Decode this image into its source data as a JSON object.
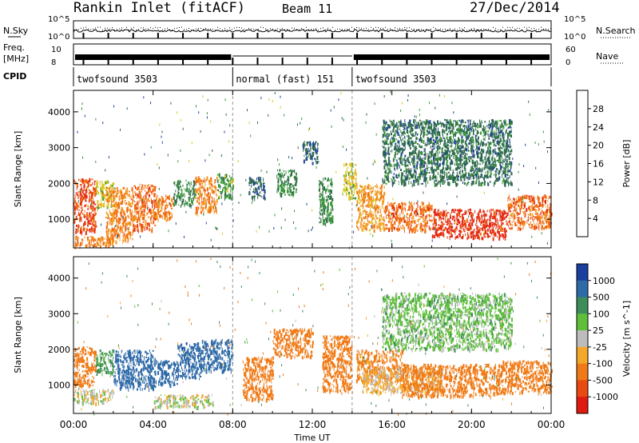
{
  "header": {
    "station": "Rankin Inlet (fitACF)",
    "beam": "Beam 11",
    "date": "27/Dec/2014"
  },
  "top_panels": {
    "nsky_label": "N.Sky",
    "nsky_ticks": [
      "10^5",
      "10^0"
    ],
    "nsearch_label": "N.Search",
    "nsearch_ticks": [
      "10^5",
      "10^0"
    ],
    "freq_label_1": "Freq.",
    "freq_label_2": "[MHz]",
    "freq_ticks": [
      "10",
      "8"
    ],
    "nave_label": "Nave",
    "nave_ticks": [
      "60",
      "0"
    ],
    "cpid_label": "CPID",
    "cpid_segments": [
      {
        "label": "twofsound 3503",
        "start_hour": 0,
        "end_hour": 8
      },
      {
        "label": "normal (fast) 151",
        "start_hour": 8,
        "end_hour": 14
      },
      {
        "label": "twofsound 3503",
        "start_hour": 14,
        "end_hour": 24
      }
    ]
  },
  "x_axis": {
    "label": "Time UT",
    "ticks": [
      "00:00",
      "04:00",
      "08:00",
      "12:00",
      "16:00",
      "20:00",
      "00:00"
    ]
  },
  "y_axis": {
    "label": "Slant Range [km]",
    "ticks": [
      "1000",
      "2000",
      "3000",
      "4000"
    ]
  },
  "power_scale": {
    "label": "Power [dB]",
    "ticks": [
      "4",
      "8",
      "12",
      "16",
      "20",
      "24",
      "28"
    ],
    "colors": [
      "#1f24ff",
      "#22449a",
      "#2f6b4a",
      "#3d9a3a",
      "#d9c81e",
      "#f49a1e",
      "#f06a14",
      "#e32a12"
    ]
  },
  "velocity_scale": {
    "label": "Velocity [m s^-1]",
    "ticks": [
      "1000",
      "500",
      "100",
      "25",
      "-25",
      "-100",
      "-500",
      "-1000"
    ],
    "colors": [
      "#1b3f9e",
      "#2f6aa8",
      "#3d8c5a",
      "#5fbf3a",
      "#bcbcbc",
      "#f3a82a",
      "#f07a16",
      "#e84a12",
      "#e01a10"
    ]
  },
  "chart_data": [
    {
      "type": "heatmap",
      "title": "Power",
      "xlabel": "Time UT",
      "ylabel": "Slant Range [km]",
      "xlim": [
        0,
        24
      ],
      "ylim": [
        200,
        4600
      ],
      "colorbar_label": "Power [dB]",
      "colorbar_range": [
        0,
        32
      ],
      "blobs": [
        {
          "t0": 0.0,
          "t1": 1.1,
          "r0": 650,
          "r1": 2150,
          "value": 28
        },
        {
          "t0": 1.1,
          "t1": 2.0,
          "r0": 1300,
          "r1": 2100,
          "value": 18
        },
        {
          "t0": 1.6,
          "t1": 3.0,
          "r0": 400,
          "r1": 1900,
          "value": 24
        },
        {
          "t0": 3.0,
          "t1": 4.1,
          "r0": 700,
          "r1": 2000,
          "value": 26
        },
        {
          "t0": 4.1,
          "t1": 5.0,
          "r0": 1000,
          "r1": 1700,
          "value": 24
        },
        {
          "t0": 5.0,
          "t1": 6.1,
          "r0": 1400,
          "r1": 2100,
          "value": 12
        },
        {
          "t0": 6.1,
          "t1": 7.2,
          "r0": 1200,
          "r1": 2200,
          "value": 24
        },
        {
          "t0": 7.2,
          "t1": 8.0,
          "r0": 1600,
          "r1": 2300,
          "value": 14
        },
        {
          "t0": 8.8,
          "t1": 9.6,
          "r0": 1600,
          "r1": 2200,
          "value": 8
        },
        {
          "t0": 10.2,
          "t1": 11.2,
          "r0": 1700,
          "r1": 2400,
          "value": 12
        },
        {
          "t0": 11.5,
          "t1": 12.3,
          "r0": 2600,
          "r1": 3200,
          "value": 8
        },
        {
          "t0": 12.3,
          "t1": 13.0,
          "r0": 900,
          "r1": 2200,
          "value": 12
        },
        {
          "t0": 13.5,
          "t1": 14.2,
          "r0": 1600,
          "r1": 2600,
          "value": 18
        },
        {
          "t0": 14.2,
          "t1": 15.6,
          "r0": 700,
          "r1": 2000,
          "value": 22
        },
        {
          "t0": 15.6,
          "t1": 18.0,
          "r0": 700,
          "r1": 1500,
          "value": 26
        },
        {
          "t0": 18.0,
          "t1": 21.8,
          "r0": 500,
          "r1": 1300,
          "value": 30
        },
        {
          "t0": 21.8,
          "t1": 24.0,
          "r0": 750,
          "r1": 1700,
          "value": 26
        },
        {
          "t0": 15.5,
          "t1": 22.0,
          "r0": 2000,
          "r1": 3800,
          "value": 10
        },
        {
          "t0": 0.0,
          "t1": 2.0,
          "r0": 250,
          "r1": 550,
          "value": 24
        }
      ]
    },
    {
      "type": "heatmap",
      "title": "Velocity",
      "xlabel": "Time UT",
      "ylabel": "Slant Range [km]",
      "xlim": [
        0,
        24
      ],
      "ylim": [
        200,
        4600
      ],
      "colorbar_label": "Velocity [m s^-1]",
      "colorbar_range": [
        -1000,
        1000
      ],
      "blobs": [
        {
          "t0": 0.0,
          "t1": 1.1,
          "r0": 1000,
          "r1": 2100,
          "value": -300
        },
        {
          "t0": 0.0,
          "t1": 2.0,
          "r0": 500,
          "r1": 900,
          "value": 0
        },
        {
          "t0": 1.1,
          "t1": 2.0,
          "r0": 1300,
          "r1": 2000,
          "value": 120
        },
        {
          "t0": 2.0,
          "t1": 4.1,
          "r0": 900,
          "r1": 2000,
          "value": 400
        },
        {
          "t0": 4.1,
          "t1": 5.2,
          "r0": 1000,
          "r1": 1700,
          "value": 500
        },
        {
          "t0": 5.2,
          "t1": 6.4,
          "r0": 1200,
          "r1": 2200,
          "value": 700
        },
        {
          "t0": 6.4,
          "t1": 8.0,
          "r0": 1400,
          "r1": 2300,
          "value": 600
        },
        {
          "t0": 4.0,
          "t1": 7.0,
          "r0": 400,
          "r1": 750,
          "value": 0
        },
        {
          "t0": 8.5,
          "t1": 10.0,
          "r0": 600,
          "r1": 1800,
          "value": -300
        },
        {
          "t0": 10.0,
          "t1": 12.0,
          "r0": 1800,
          "r1": 2600,
          "value": -300
        },
        {
          "t0": 12.5,
          "t1": 14.0,
          "r0": 800,
          "r1": 2400,
          "value": -250
        },
        {
          "t0": 14.2,
          "t1": 16.5,
          "r0": 1100,
          "r1": 2000,
          "value": -150
        },
        {
          "t0": 14.5,
          "t1": 18.5,
          "r0": 800,
          "r1": 1500,
          "value": -40
        },
        {
          "t0": 16.5,
          "t1": 21.5,
          "r0": 700,
          "r1": 1600,
          "value": -300
        },
        {
          "t0": 21.5,
          "t1": 24.0,
          "r0": 800,
          "r1": 1700,
          "value": -250
        },
        {
          "t0": 15.5,
          "t1": 22.0,
          "r0": 2000,
          "r1": 3600,
          "value": 60
        }
      ]
    }
  ]
}
